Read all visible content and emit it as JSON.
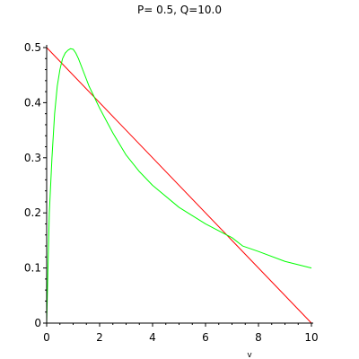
{
  "chart_data": {
    "type": "line",
    "title": "P= 0.5, Q=10.0",
    "xlabel": "v",
    "ylabel": "",
    "xlim": [
      0,
      10
    ],
    "ylim": [
      0,
      0.5
    ],
    "x_ticks": [
      0,
      2,
      4,
      6,
      8,
      10
    ],
    "y_ticks": [
      0,
      0.1,
      0.2,
      0.3,
      0.4,
      0.5
    ],
    "x_tick_labels": [
      "0",
      "2",
      "4",
      "6",
      "8",
      "10"
    ],
    "y_tick_labels": [
      "0",
      "0.1",
      "0.2",
      "0.3",
      "0.4",
      "0.5"
    ],
    "grid": false,
    "legend": "none",
    "series": [
      {
        "color": "#ff0000",
        "x": [
          0,
          10
        ],
        "y": [
          0.5,
          0.0
        ]
      },
      {
        "color": "#00ff00",
        "x": [
          0,
          0.05,
          0.1,
          0.2,
          0.3,
          0.4,
          0.5,
          0.6,
          0.7,
          0.8,
          0.9,
          1.0,
          1.1,
          1.2,
          1.4,
          1.6,
          1.8,
          2.0,
          2.5,
          3.0,
          3.5,
          4.0,
          5.0,
          6.0,
          7.0,
          7.4,
          8.0,
          9.0,
          10.0
        ],
        "y": [
          0.0,
          0.1,
          0.2,
          0.3,
          0.38,
          0.43,
          0.46,
          0.48,
          0.49,
          0.495,
          0.498,
          0.497,
          0.49,
          0.48,
          0.455,
          0.43,
          0.41,
          0.39,
          0.345,
          0.305,
          0.275,
          0.25,
          0.21,
          0.18,
          0.155,
          0.14,
          0.13,
          0.112,
          0.1
        ]
      }
    ]
  }
}
